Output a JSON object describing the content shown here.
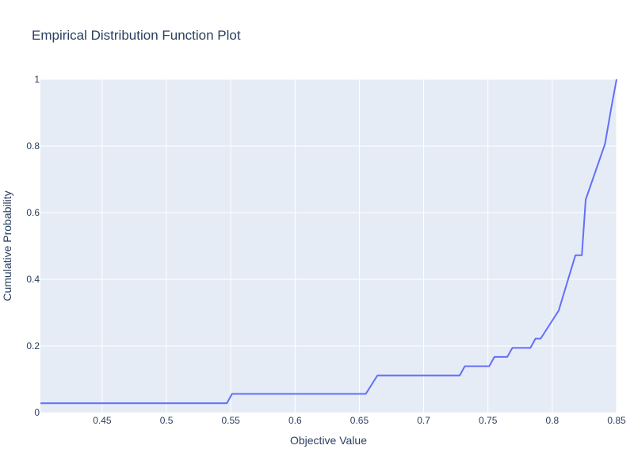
{
  "chart_data": {
    "type": "line",
    "title": "Empirical Distribution Function Plot",
    "xlabel": "Objective Value",
    "ylabel": "Cumulative Probability",
    "xlim": [
      0.402,
      0.85
    ],
    "ylim": [
      0,
      1
    ],
    "x_ticks": [
      "0.45",
      "0.5",
      "0.55",
      "0.6",
      "0.65",
      "0.7",
      "0.75",
      "0.8",
      "0.85"
    ],
    "y_ticks": [
      "0",
      "0.2",
      "0.4",
      "0.6",
      "0.8",
      "1"
    ],
    "grid": true,
    "line_color": "#636efa",
    "plot_bg": "#e5ecf6",
    "series": [
      {
        "x": [
          0.402,
          0.547,
          0.551,
          0.655,
          0.664,
          0.728,
          0.732,
          0.751,
          0.755,
          0.765,
          0.769,
          0.783,
          0.787,
          0.791,
          0.805,
          0.818,
          0.823,
          0.826,
          0.841,
          0.846,
          0.85
        ],
        "y": [
          0.028,
          0.028,
          0.056,
          0.056,
          0.111,
          0.111,
          0.139,
          0.139,
          0.167,
          0.167,
          0.194,
          0.194,
          0.222,
          0.222,
          0.306,
          0.472,
          0.472,
          0.639,
          0.806,
          0.917,
          1.0
        ]
      }
    ]
  }
}
